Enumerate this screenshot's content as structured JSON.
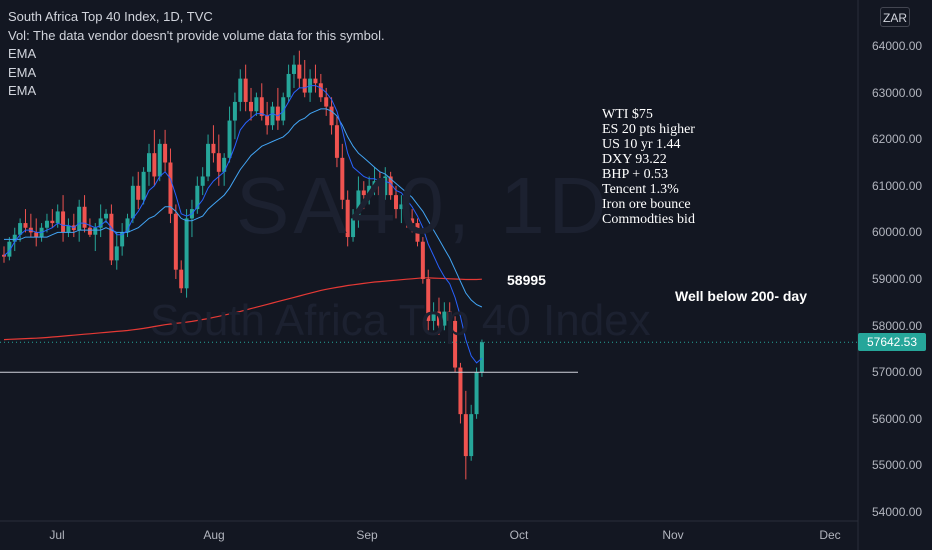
{
  "header": {
    "title": "South Africa Top 40 Index, 1D, TVC",
    "vol_note": "Vol: The data vendor doesn't provide volume data for this symbol.",
    "indicators": [
      "EMA",
      "EMA",
      "EMA"
    ],
    "currency": "ZAR"
  },
  "watermark": {
    "symbol": "SA40, 1D",
    "description": "South Africa Top 40 Index"
  },
  "notes": [
    "WTI $75",
    "ES 20 pts higher",
    "US 10 yr 1.44",
    "DXY 93.22",
    "BHP + 0.53",
    "Tencent 1.3%",
    "Iron ore bounce",
    "Commodties bid"
  ],
  "annotations": {
    "level_label": "58995",
    "ma_note": "Well below 200- day"
  },
  "last_price": "57642.53",
  "colors": {
    "background": "#131722",
    "up": "#26a69a",
    "down": "#ef5350",
    "ema_fast": "#2962ff",
    "ema_mid": "#42a5f5",
    "ema_slow": "#e53935",
    "hline": "#d1d4dc"
  },
  "chart_data": {
    "type": "candlestick",
    "y_axis": {
      "ticks": [
        "54000.00",
        "55000.00",
        "56000.00",
        "57000.00",
        "58000.00",
        "59000.00",
        "60000.00",
        "61000.00",
        "62000.00",
        "63000.00",
        "64000.00"
      ],
      "range": [
        53850,
        64500
      ]
    },
    "x_axis": {
      "ticks": [
        "Jul",
        "Aug",
        "Sep",
        "Oct",
        "Nov",
        "Dec"
      ]
    },
    "horizontal_line": 57000,
    "last_price": 57642.53,
    "candles": [
      {
        "o": 59520,
        "h": 59700,
        "l": 59350,
        "c": 59480
      },
      {
        "o": 59480,
        "h": 59900,
        "l": 59400,
        "c": 59800
      },
      {
        "o": 59800,
        "h": 60100,
        "l": 59600,
        "c": 59950
      },
      {
        "o": 59950,
        "h": 60300,
        "l": 59800,
        "c": 60200
      },
      {
        "o": 60200,
        "h": 60500,
        "l": 60000,
        "c": 60100
      },
      {
        "o": 60100,
        "h": 60400,
        "l": 59900,
        "c": 60000
      },
      {
        "o": 60000,
        "h": 60300,
        "l": 59700,
        "c": 59900
      },
      {
        "o": 59900,
        "h": 60200,
        "l": 59800,
        "c": 60100
      },
      {
        "o": 60100,
        "h": 60400,
        "l": 60000,
        "c": 60250
      },
      {
        "o": 60250,
        "h": 60500,
        "l": 60100,
        "c": 60200
      },
      {
        "o": 60200,
        "h": 60600,
        "l": 60100,
        "c": 60450
      },
      {
        "o": 60450,
        "h": 60800,
        "l": 59800,
        "c": 60000
      },
      {
        "o": 60000,
        "h": 60300,
        "l": 59900,
        "c": 60150
      },
      {
        "o": 60150,
        "h": 60400,
        "l": 59900,
        "c": 60050
      },
      {
        "o": 60050,
        "h": 60700,
        "l": 59800,
        "c": 60550
      },
      {
        "o": 60550,
        "h": 60800,
        "l": 60000,
        "c": 60100
      },
      {
        "o": 60100,
        "h": 60300,
        "l": 59900,
        "c": 59950
      },
      {
        "o": 59950,
        "h": 60200,
        "l": 59600,
        "c": 60100
      },
      {
        "o": 60100,
        "h": 60600,
        "l": 59900,
        "c": 60300
      },
      {
        "o": 60300,
        "h": 60500,
        "l": 60200,
        "c": 60400
      },
      {
        "o": 60400,
        "h": 60600,
        "l": 59300,
        "c": 59400
      },
      {
        "o": 59400,
        "h": 60000,
        "l": 59200,
        "c": 59700
      },
      {
        "o": 59700,
        "h": 60200,
        "l": 59500,
        "c": 60000
      },
      {
        "o": 60000,
        "h": 60400,
        "l": 59900,
        "c": 60300
      },
      {
        "o": 60300,
        "h": 61200,
        "l": 60200,
        "c": 61000
      },
      {
        "o": 61000,
        "h": 61300,
        "l": 60500,
        "c": 60700
      },
      {
        "o": 60700,
        "h": 61400,
        "l": 60600,
        "c": 61300
      },
      {
        "o": 61300,
        "h": 61900,
        "l": 61000,
        "c": 61700
      },
      {
        "o": 61700,
        "h": 62200,
        "l": 61000,
        "c": 61200
      },
      {
        "o": 61200,
        "h": 62000,
        "l": 61100,
        "c": 61900
      },
      {
        "o": 61900,
        "h": 62200,
        "l": 61300,
        "c": 61500
      },
      {
        "o": 61500,
        "h": 61800,
        "l": 60200,
        "c": 60400
      },
      {
        "o": 60400,
        "h": 60600,
        "l": 59000,
        "c": 59200
      },
      {
        "o": 59200,
        "h": 59400,
        "l": 58700,
        "c": 58800
      },
      {
        "o": 58800,
        "h": 60500,
        "l": 58600,
        "c": 60300
      },
      {
        "o": 60300,
        "h": 60700,
        "l": 59900,
        "c": 60500
      },
      {
        "o": 60500,
        "h": 61200,
        "l": 60400,
        "c": 61000
      },
      {
        "o": 61000,
        "h": 61400,
        "l": 60800,
        "c": 61200
      },
      {
        "o": 61200,
        "h": 62100,
        "l": 61100,
        "c": 61900
      },
      {
        "o": 61900,
        "h": 62300,
        "l": 61500,
        "c": 61700
      },
      {
        "o": 61700,
        "h": 62100,
        "l": 61000,
        "c": 61300
      },
      {
        "o": 61300,
        "h": 61700,
        "l": 61000,
        "c": 61600
      },
      {
        "o": 61600,
        "h": 62700,
        "l": 61500,
        "c": 62400
      },
      {
        "o": 62400,
        "h": 63000,
        "l": 62000,
        "c": 62800
      },
      {
        "o": 62800,
        "h": 63500,
        "l": 62600,
        "c": 63300
      },
      {
        "o": 63300,
        "h": 63600,
        "l": 62600,
        "c": 62800
      },
      {
        "o": 62800,
        "h": 63100,
        "l": 62400,
        "c": 62600
      },
      {
        "o": 62600,
        "h": 63000,
        "l": 62500,
        "c": 62900
      },
      {
        "o": 62900,
        "h": 63200,
        "l": 62400,
        "c": 62500
      },
      {
        "o": 62500,
        "h": 62800,
        "l": 62100,
        "c": 62300
      },
      {
        "o": 62300,
        "h": 62800,
        "l": 62200,
        "c": 62700
      },
      {
        "o": 62700,
        "h": 63100,
        "l": 62200,
        "c": 62400
      },
      {
        "o": 62400,
        "h": 63000,
        "l": 62300,
        "c": 62900
      },
      {
        "o": 62900,
        "h": 63600,
        "l": 62800,
        "c": 63400
      },
      {
        "o": 63400,
        "h": 63800,
        "l": 63100,
        "c": 63600
      },
      {
        "o": 63600,
        "h": 63900,
        "l": 63100,
        "c": 63300
      },
      {
        "o": 63300,
        "h": 63700,
        "l": 62900,
        "c": 63000
      },
      {
        "o": 63000,
        "h": 63500,
        "l": 62800,
        "c": 63300
      },
      {
        "o": 63300,
        "h": 63600,
        "l": 63000,
        "c": 63200
      },
      {
        "o": 63200,
        "h": 63400,
        "l": 62800,
        "c": 62900
      },
      {
        "o": 62900,
        "h": 63100,
        "l": 62500,
        "c": 62700
      },
      {
        "o": 62700,
        "h": 62900,
        "l": 62100,
        "c": 62300
      },
      {
        "o": 62300,
        "h": 62500,
        "l": 61400,
        "c": 61600
      },
      {
        "o": 61600,
        "h": 61900,
        "l": 60500,
        "c": 60700
      },
      {
        "o": 60700,
        "h": 60900,
        "l": 59700,
        "c": 59900
      },
      {
        "o": 59900,
        "h": 60500,
        "l": 59800,
        "c": 60300
      },
      {
        "o": 60300,
        "h": 61200,
        "l": 60100,
        "c": 60900
      },
      {
        "o": 60900,
        "h": 61100,
        "l": 60500,
        "c": 60800
      },
      {
        "o": 60800,
        "h": 61200,
        "l": 60600,
        "c": 61000
      },
      {
        "o": 61000,
        "h": 61400,
        "l": 60800,
        "c": 61100
      },
      {
        "o": 61100,
        "h": 61300,
        "l": 60700,
        "c": 60800
      },
      {
        "o": 60800,
        "h": 61400,
        "l": 60700,
        "c": 61200
      },
      {
        "o": 61200,
        "h": 61300,
        "l": 60700,
        "c": 60800
      },
      {
        "o": 60800,
        "h": 61000,
        "l": 60300,
        "c": 60500
      },
      {
        "o": 60500,
        "h": 60800,
        "l": 60200,
        "c": 60600
      },
      {
        "o": 60600,
        "h": 60800,
        "l": 60100,
        "c": 60300
      },
      {
        "o": 60300,
        "h": 60500,
        "l": 60000,
        "c": 60200
      },
      {
        "o": 60200,
        "h": 60300,
        "l": 59700,
        "c": 59800
      },
      {
        "o": 59800,
        "h": 59900,
        "l": 58900,
        "c": 59000
      },
      {
        "o": 59000,
        "h": 59200,
        "l": 57900,
        "c": 58100
      },
      {
        "o": 58100,
        "h": 58500,
        "l": 57900,
        "c": 58300
      },
      {
        "o": 58300,
        "h": 58600,
        "l": 57800,
        "c": 58000
      },
      {
        "o": 58000,
        "h": 58500,
        "l": 57900,
        "c": 58300
      },
      {
        "o": 58300,
        "h": 58500,
        "l": 57900,
        "c": 58100
      },
      {
        "o": 58100,
        "h": 58200,
        "l": 57000,
        "c": 57100
      },
      {
        "o": 57100,
        "h": 57200,
        "l": 55900,
        "c": 56100
      },
      {
        "o": 56100,
        "h": 56600,
        "l": 54700,
        "c": 55200
      },
      {
        "o": 55200,
        "h": 56300,
        "l": 55100,
        "c": 56100
      },
      {
        "o": 56100,
        "h": 57100,
        "l": 56000,
        "c": 57000
      },
      {
        "o": 57000,
        "h": 57700,
        "l": 56900,
        "c": 57642.53
      }
    ],
    "ema_fast": [
      59500,
      59600,
      59800,
      59950,
      60050,
      60050,
      60000,
      60000,
      60050,
      60100,
      60200,
      60150,
      60150,
      60100,
      60200,
      60200,
      60150,
      60100,
      60150,
      60250,
      60100,
      59950,
      59950,
      60050,
      60300,
      60450,
      60650,
      60900,
      61000,
      61200,
      61300,
      61150,
      60800,
      60400,
      60350,
      60400,
      60550,
      60700,
      60950,
      61100,
      61200,
      61300,
      61550,
      61850,
      62200,
      62350,
      62450,
      62550,
      62550,
      62500,
      62550,
      62500,
      62600,
      62800,
      63000,
      63100,
      63100,
      63150,
      63150,
      63100,
      63000,
      62850,
      62600,
      62200,
      61700,
      61400,
      61300,
      61200,
      61150,
      61150,
      61100,
      61100,
      61050,
      60900,
      60850,
      60700,
      60550,
      60350,
      60100,
      59750,
      59500,
      59250,
      59050,
      58900,
      58600,
      58200,
      57700,
      57350,
      57200,
      57300
    ],
    "ema_mid": [
      59850,
      59850,
      59850,
      59850,
      59900,
      59900,
      59900,
      59900,
      59900,
      59950,
      60000,
      60000,
      60000,
      60000,
      60050,
      60050,
      60050,
      60050,
      60050,
      60100,
      60050,
      60000,
      60000,
      60000,
      60050,
      60100,
      60200,
      60300,
      60350,
      60450,
      60550,
      60550,
      60450,
      60300,
      60250,
      60250,
      60300,
      60350,
      60500,
      60600,
      60700,
      60800,
      60950,
      61150,
      61350,
      61500,
      61650,
      61750,
      61850,
      61900,
      61950,
      62000,
      62050,
      62150,
      62300,
      62400,
      62450,
      62550,
      62600,
      62650,
      62650,
      62600,
      62500,
      62300,
      62050,
      61850,
      61700,
      61600,
      61500,
      61400,
      61300,
      61250,
      61150,
      61050,
      60950,
      60850,
      60750,
      60600,
      60450,
      60250,
      60050,
      59850,
      59650,
      59450,
      59200,
      58950,
      58700,
      58550,
      58450,
      58400
    ],
    "ema_slow": [
      57700,
      57705,
      57710,
      57715,
      57720,
      57725,
      57730,
      57735,
      57745,
      57755,
      57765,
      57775,
      57785,
      57795,
      57805,
      57815,
      57825,
      57835,
      57845,
      57855,
      57865,
      57875,
      57885,
      57895,
      57910,
      57925,
      57940,
      57960,
      57980,
      58000,
      58020,
      58035,
      58050,
      58060,
      58075,
      58090,
      58110,
      58130,
      58150,
      58175,
      58200,
      58225,
      58250,
      58275,
      58305,
      58335,
      58365,
      58395,
      58425,
      58455,
      58485,
      58515,
      58545,
      58575,
      58605,
      58635,
      58665,
      58695,
      58725,
      58755,
      58780,
      58800,
      58820,
      58840,
      58860,
      58875,
      58890,
      58905,
      58920,
      58935,
      58945,
      58955,
      58965,
      58975,
      58985,
      58995,
      59005,
      59015,
      59025,
      59025,
      59020,
      59015,
      59010,
      59005,
      59000,
      58995,
      58990,
      58990,
      58990,
      58995
    ]
  }
}
